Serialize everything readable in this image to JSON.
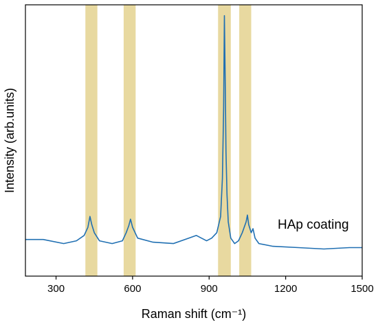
{
  "chart_data": {
    "type": "line",
    "title": "",
    "xlabel": "Raman shift (cm⁻¹)",
    "ylabel": "Intensity (arb.units)",
    "xlim": [
      180,
      1500
    ],
    "ylim": [
      0,
      1
    ],
    "xticks": [
      300,
      600,
      900,
      1200,
      1500
    ],
    "xtick_labels": [
      "300",
      "600",
      "900",
      "1200",
      "1500"
    ],
    "yticks_shown": false,
    "grid": false,
    "legend": "none",
    "annotation": "HAp coating",
    "highlight_bands": [
      {
        "x0": 415,
        "x1": 462
      },
      {
        "x0": 565,
        "x1": 612
      },
      {
        "x0": 935,
        "x1": 985
      },
      {
        "x0": 1018,
        "x1": 1065
      }
    ],
    "series": [
      {
        "color": "#1f6fb2",
        "x": [
          180,
          250,
          330,
          380,
          410,
          425,
          433,
          440,
          450,
          470,
          520,
          560,
          575,
          585,
          592,
          600,
          620,
          680,
          760,
          820,
          850,
          870,
          890,
          910,
          930,
          945,
          952,
          957,
          960,
          963,
          966,
          970,
          975,
          985,
          1000,
          1015,
          1030,
          1045,
          1050,
          1055,
          1065,
          1072,
          1080,
          1095,
          1150,
          1250,
          1350,
          1450,
          1500
        ],
        "y": [
          0.135,
          0.135,
          0.12,
          0.13,
          0.15,
          0.18,
          0.22,
          0.19,
          0.16,
          0.13,
          0.12,
          0.13,
          0.16,
          0.185,
          0.21,
          0.18,
          0.14,
          0.125,
          0.12,
          0.14,
          0.15,
          0.14,
          0.13,
          0.14,
          0.16,
          0.22,
          0.36,
          0.62,
          0.96,
          0.72,
          0.46,
          0.3,
          0.2,
          0.14,
          0.12,
          0.13,
          0.16,
          0.2,
          0.225,
          0.19,
          0.16,
          0.175,
          0.14,
          0.12,
          0.11,
          0.105,
          0.1,
          0.105,
          0.105
        ]
      }
    ]
  }
}
